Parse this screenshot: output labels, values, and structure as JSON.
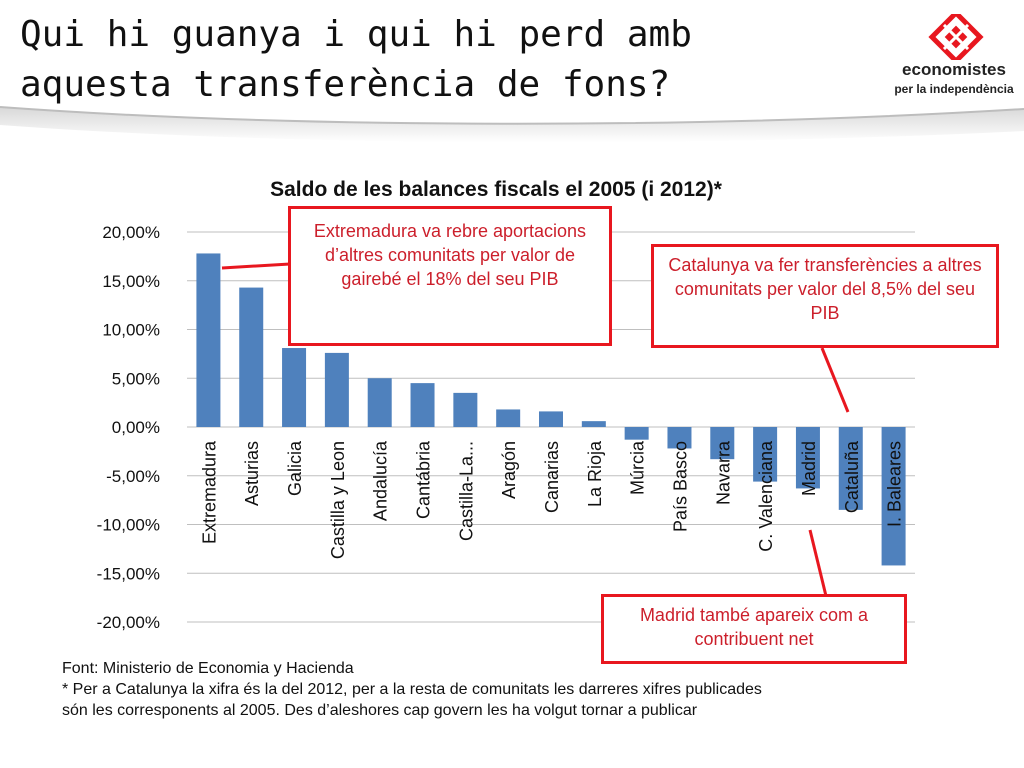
{
  "slide": {
    "title_line1": "Qui hi guanya i qui hi perd amb",
    "title_line2": "aquesta transferència de fons?"
  },
  "logo": {
    "name": "economistes",
    "tagline": "per la independència",
    "color": "#e8171f"
  },
  "chart_data": {
    "type": "bar",
    "title": "Saldo de les balances fiscals el 2005 (i 2012)*",
    "categories": [
      "Extremadura",
      "Asturias",
      "Galicia",
      "Castilla y Leon",
      "Andalucía",
      "Cantábria",
      "Castilla-La...",
      "Aragón",
      "Canarias",
      "La Rioja",
      "Múrcia",
      "País Basco",
      "Navarra",
      "C. Valenciana",
      "Madrid",
      "Cataluña",
      "I. Baleares"
    ],
    "values": [
      17.8,
      14.3,
      8.1,
      7.6,
      5.0,
      4.5,
      3.5,
      1.8,
      1.6,
      0.6,
      -1.3,
      -2.2,
      -3.3,
      -5.6,
      -6.3,
      -8.5,
      -14.2
    ],
    "yticks": [
      "20,00%",
      "15,00%",
      "10,00%",
      "5,00%",
      "0,00%",
      "-5,00%",
      "-10,00%",
      "-15,00%",
      "-20,00%"
    ],
    "ylim": [
      -20,
      20
    ],
    "grid": true,
    "bar_color": "#4f81bd"
  },
  "callouts": {
    "extremadura": "Extremadura va rebre aportacions d’altres comunitats per valor de gairebé el 18% del seu PIB",
    "catalunya": "Catalunya va fer transferències a altres comunitats per valor del 8,5% del seu PIB",
    "madrid": "Madrid també apareix com a contribuent net",
    "color": "#e8171f"
  },
  "footnote": {
    "line1": "Font: Ministerio de Economia y Hacienda",
    "line2": "* Per a Catalunya la xifra és la del 2012, per a la resta de comunitats les darreres xifres publicades",
    "line3": "són les corresponents al 2005. Des d’aleshores cap govern les ha volgut tornar a publicar"
  }
}
